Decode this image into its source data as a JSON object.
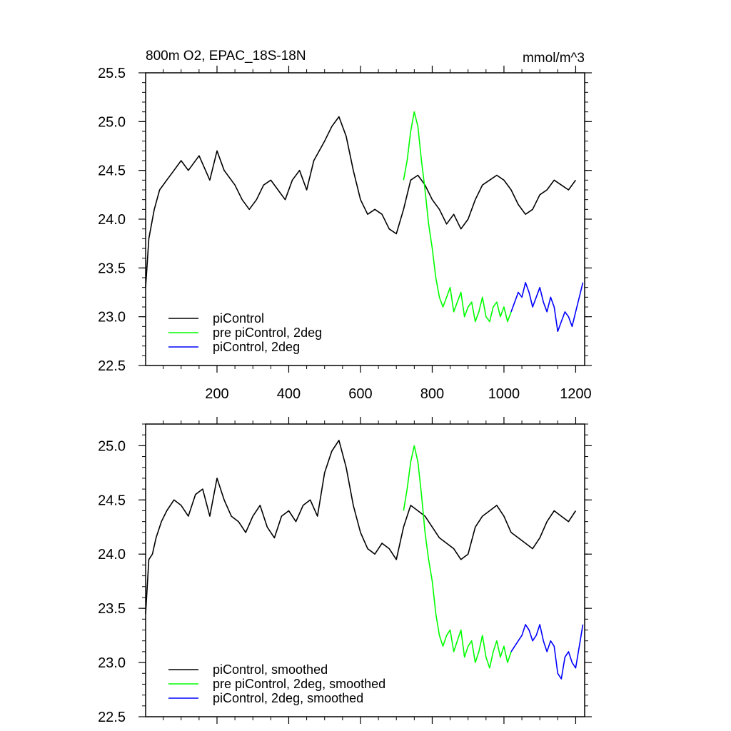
{
  "colors": {
    "piControl": "#000000",
    "pre_piControl_2deg": "#00ff00",
    "piControl_2deg": "#0000ff"
  },
  "chart_data": [
    {
      "type": "line",
      "title": "800m O2, EPAC_18S-18N",
      "units": "mmol/m^3",
      "xlim": [
        1,
        1225
      ],
      "ylim": [
        22.5,
        25.5
      ],
      "x_ticks": [
        200,
        400,
        600,
        800,
        1000,
        1200
      ],
      "y_ticks": [
        22.5,
        23.0,
        23.5,
        24.0,
        24.5,
        25.0,
        25.5
      ],
      "y_tick_labels": [
        "22.5",
        "23.0",
        "23.5",
        "24.0",
        "24.5",
        "25.0",
        "25.5"
      ],
      "legend_location": "bottom-left",
      "series": [
        {
          "name": "piControl",
          "color_key": "piControl",
          "x": [
            1,
            10,
            25,
            40,
            60,
            80,
            100,
            120,
            150,
            180,
            200,
            220,
            250,
            270,
            290,
            310,
            330,
            350,
            370,
            390,
            410,
            430,
            450,
            470,
            500,
            520,
            540,
            560,
            580,
            600,
            620,
            640,
            660,
            680,
            700,
            720,
            740,
            760,
            780,
            800,
            820,
            840,
            860,
            880,
            900,
            920,
            940,
            960,
            980,
            1000,
            1020,
            1040,
            1060,
            1080,
            1100,
            1120,
            1140,
            1160,
            1180,
            1200
          ],
          "y": [
            23.3,
            23.8,
            24.1,
            24.3,
            24.4,
            24.5,
            24.6,
            24.5,
            24.65,
            24.4,
            24.7,
            24.5,
            24.35,
            24.2,
            24.1,
            24.2,
            24.35,
            24.4,
            24.3,
            24.2,
            24.4,
            24.5,
            24.3,
            24.6,
            24.8,
            24.95,
            25.05,
            24.85,
            24.5,
            24.2,
            24.05,
            24.1,
            24.05,
            23.9,
            23.85,
            24.1,
            24.4,
            24.45,
            24.35,
            24.2,
            24.1,
            23.95,
            24.05,
            23.9,
            24.0,
            24.2,
            24.35,
            24.4,
            24.45,
            24.4,
            24.3,
            24.15,
            24.05,
            24.1,
            24.25,
            24.3,
            24.4,
            24.35,
            24.3,
            24.4
          ]
        },
        {
          "name": "pre piControl, 2deg",
          "color_key": "pre_piControl_2deg",
          "x": [
            720,
            730,
            740,
            750,
            760,
            770,
            780,
            790,
            800,
            810,
            820,
            830,
            840,
            850,
            860,
            870,
            880,
            890,
            900,
            910,
            920,
            930,
            940,
            950,
            960,
            970,
            980,
            990,
            1000,
            1010,
            1020
          ],
          "y": [
            24.4,
            24.6,
            24.9,
            25.1,
            24.95,
            24.6,
            24.3,
            23.95,
            23.7,
            23.4,
            23.2,
            23.1,
            23.2,
            23.3,
            23.05,
            23.15,
            23.25,
            23.0,
            23.1,
            23.15,
            22.95,
            23.05,
            23.2,
            23.0,
            22.95,
            23.1,
            23.15,
            23.0,
            23.1,
            22.95,
            23.05
          ]
        },
        {
          "name": "piControl, 2deg",
          "color_key": "piControl_2deg",
          "x": [
            1020,
            1030,
            1040,
            1050,
            1060,
            1070,
            1080,
            1090,
            1100,
            1110,
            1120,
            1130,
            1140,
            1150,
            1160,
            1170,
            1180,
            1190,
            1200,
            1210,
            1220
          ],
          "y": [
            23.05,
            23.15,
            23.25,
            23.2,
            23.35,
            23.25,
            23.1,
            23.2,
            23.3,
            23.15,
            23.05,
            23.2,
            23.1,
            22.85,
            22.95,
            23.05,
            23.0,
            22.9,
            23.05,
            23.2,
            23.35
          ]
        }
      ]
    },
    {
      "type": "line",
      "xlim": [
        1,
        1225
      ],
      "ylim": [
        22.5,
        25.2
      ],
      "y_ticks": [
        22.5,
        23.0,
        23.5,
        24.0,
        24.5,
        25.0
      ],
      "y_tick_labels": [
        "22.5",
        "23.0",
        "23.5",
        "24.0",
        "24.5",
        "25.0"
      ],
      "legend_location": "bottom-left",
      "series": [
        {
          "name": "piControl, smoothed",
          "color_key": "piControl",
          "x": [
            1,
            10,
            20,
            30,
            45,
            60,
            80,
            100,
            120,
            140,
            160,
            180,
            200,
            220,
            240,
            260,
            280,
            300,
            320,
            340,
            360,
            380,
            400,
            420,
            440,
            460,
            480,
            500,
            520,
            540,
            560,
            580,
            600,
            620,
            640,
            660,
            680,
            700,
            720,
            740,
            760,
            780,
            800,
            820,
            840,
            860,
            880,
            900,
            920,
            940,
            960,
            980,
            1000,
            1020,
            1040,
            1060,
            1080,
            1100,
            1120,
            1140,
            1160,
            1180,
            1200
          ],
          "y": [
            23.45,
            23.95,
            24.0,
            24.15,
            24.3,
            24.4,
            24.5,
            24.45,
            24.35,
            24.55,
            24.6,
            24.35,
            24.7,
            24.5,
            24.35,
            24.3,
            24.2,
            24.35,
            24.45,
            24.25,
            24.15,
            24.35,
            24.4,
            24.3,
            24.45,
            24.5,
            24.35,
            24.75,
            24.95,
            25.05,
            24.8,
            24.45,
            24.2,
            24.05,
            24.0,
            24.1,
            24.05,
            23.95,
            24.25,
            24.45,
            24.4,
            24.35,
            24.25,
            24.15,
            24.1,
            24.05,
            23.95,
            24.0,
            24.25,
            24.35,
            24.4,
            24.45,
            24.35,
            24.2,
            24.15,
            24.1,
            24.05,
            24.15,
            24.3,
            24.4,
            24.35,
            24.3,
            24.4
          ]
        },
        {
          "name": "pre piControl, 2deg, smoothed",
          "color_key": "pre_piControl_2deg",
          "x": [
            720,
            730,
            740,
            750,
            760,
            770,
            780,
            790,
            800,
            810,
            820,
            830,
            840,
            850,
            860,
            870,
            880,
            890,
            900,
            910,
            920,
            930,
            940,
            950,
            960,
            970,
            980,
            990,
            1000,
            1010,
            1020
          ],
          "y": [
            24.4,
            24.6,
            24.85,
            25.0,
            24.85,
            24.55,
            24.2,
            23.95,
            23.75,
            23.45,
            23.25,
            23.15,
            23.25,
            23.3,
            23.1,
            23.2,
            23.3,
            23.05,
            23.15,
            23.2,
            23.0,
            23.1,
            23.25,
            23.05,
            22.95,
            23.1,
            23.2,
            23.05,
            23.15,
            23.0,
            23.1
          ]
        },
        {
          "name": "piControl, 2deg, smoothed",
          "color_key": "piControl_2deg",
          "x": [
            1020,
            1030,
            1040,
            1050,
            1060,
            1070,
            1080,
            1090,
            1100,
            1110,
            1120,
            1130,
            1140,
            1150,
            1160,
            1170,
            1180,
            1190,
            1200,
            1210,
            1220
          ],
          "y": [
            23.1,
            23.15,
            23.2,
            23.25,
            23.35,
            23.3,
            23.2,
            23.25,
            23.35,
            23.2,
            23.1,
            23.2,
            23.15,
            22.9,
            22.85,
            23.05,
            23.1,
            23.0,
            22.95,
            23.15,
            23.35
          ]
        }
      ]
    }
  ]
}
